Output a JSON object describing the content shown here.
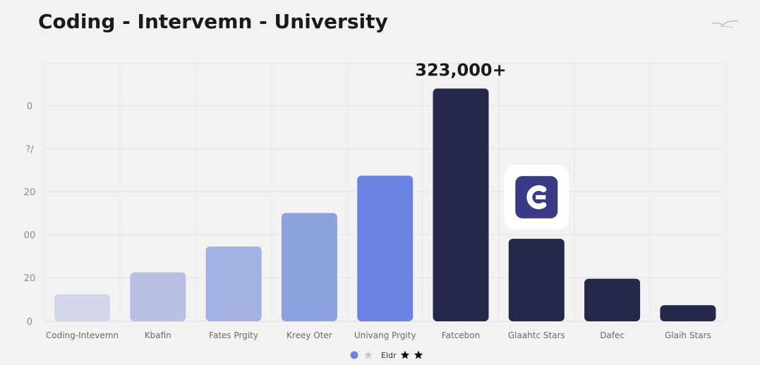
{
  "title": "Coding - Intervemn - University",
  "chart_data": {
    "type": "bar",
    "categories": [
      "Coding-Intevemn",
      "Kbafin",
      "Fates Prgity",
      "Kreey Oter",
      "Univang Prgity",
      "Fatcebon",
      "Glaahtc Stars",
      "Dafec",
      "Glaih Stars"
    ],
    "values": [
      42,
      76,
      116,
      168,
      226,
      361,
      128,
      66,
      25
    ],
    "colors": [
      "#d4d6ea",
      "#bac0e3",
      "#a3b0e4",
      "#8fa2e0",
      "#6b84e3",
      "#242949",
      "#242949",
      "#242949",
      "#242949"
    ],
    "ytick_labels": [
      "0",
      "20",
      "00",
      "20",
      "?/",
      "0"
    ],
    "ylim": [
      0,
      400
    ],
    "grid": true,
    "annotation": {
      "text": "323,000+",
      "category_index": 5
    },
    "logo_badge": {
      "category_index": 6,
      "icon": "g-logo-icon",
      "color": "#3b3a86"
    }
  },
  "legend": {
    "label": "Eldr",
    "markers": [
      {
        "shape": "dot",
        "color": "#6b84e3"
      },
      {
        "shape": "star",
        "color": "#c8c8cc"
      },
      {
        "shape": "star",
        "color": "#111111"
      },
      {
        "shape": "star",
        "color": "#111111"
      }
    ]
  },
  "corner_icon": "bird-icon"
}
